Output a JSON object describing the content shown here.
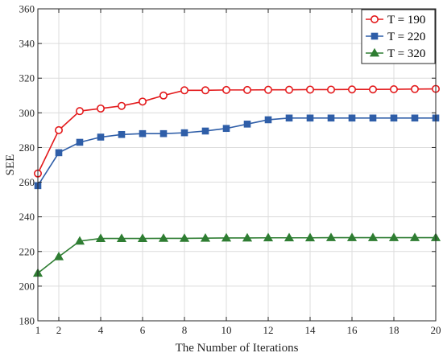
{
  "chart_data": {
    "type": "line",
    "xlabel": "The Number of Iterations",
    "ylabel": "SEE",
    "xlim": [
      1,
      20
    ],
    "ylim": [
      180,
      360
    ],
    "xticks": [
      1,
      2,
      4,
      6,
      8,
      10,
      12,
      14,
      16,
      18,
      20
    ],
    "yticks": [
      180,
      200,
      220,
      240,
      260,
      280,
      300,
      320,
      340,
      360
    ],
    "grid": true,
    "legend_position": "top-right",
    "x": [
      1,
      2,
      3,
      4,
      5,
      6,
      7,
      8,
      9,
      10,
      11,
      12,
      13,
      14,
      15,
      16,
      17,
      18,
      19,
      20
    ],
    "series": [
      {
        "name": "T = 190",
        "color": "#e31a1c",
        "marker": "circle",
        "values": [
          265,
          290,
          301,
          302.5,
          304,
          306.5,
          310,
          313,
          313,
          313.2,
          313.2,
          313.3,
          313.3,
          313.4,
          313.4,
          313.5,
          313.5,
          313.6,
          313.7,
          313.8
        ]
      },
      {
        "name": "T = 220",
        "color": "#2f5ea8",
        "marker": "square",
        "values": [
          258,
          277,
          283,
          286,
          287.5,
          288,
          288,
          288.5,
          289.5,
          291,
          293.5,
          296,
          297,
          297,
          297,
          297,
          297,
          297,
          297,
          297
        ]
      },
      {
        "name": "T = 320",
        "color": "#2e7d32",
        "marker": "triangle",
        "values": [
          207.5,
          217,
          226,
          227.5,
          227.5,
          227.5,
          227.6,
          227.6,
          227.7,
          227.8,
          227.8,
          227.9,
          227.9,
          227.9,
          228,
          228,
          228,
          228,
          228,
          228
        ]
      }
    ]
  }
}
